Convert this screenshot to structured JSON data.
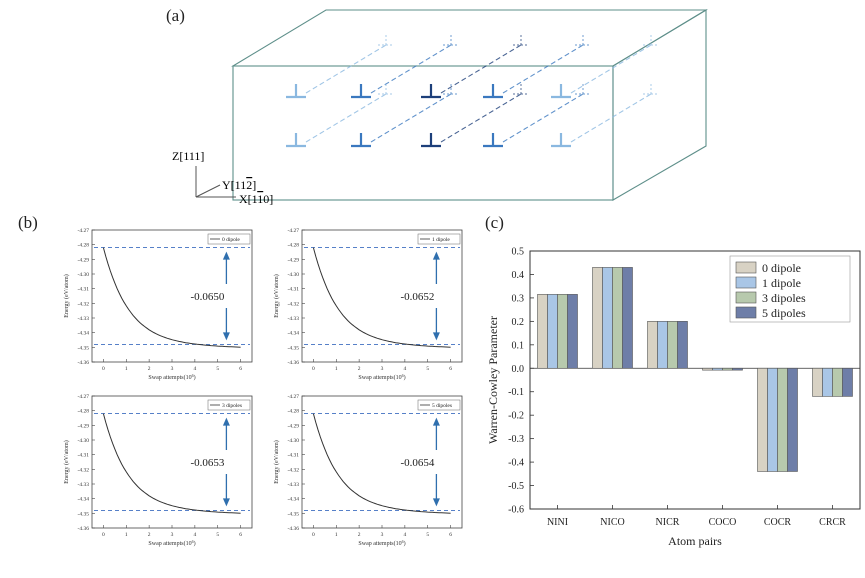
{
  "panel_labels": {
    "a": "(a)",
    "b": "(b)",
    "c": "(c)"
  },
  "axes_3d": {
    "z": "Z[111]",
    "y": "Y[11",
    "y_bar": "2",
    "y_close": "]",
    "x": "X[1",
    "x_bar": "1",
    "x_close": "0]"
  },
  "colors": {
    "box": "#5e8f8a",
    "dislocation_light": "#8ab8e0",
    "dislocation_mid": "#3a78bf",
    "dislocation_dark": "#1d3f7a",
    "energy_line": "#333333",
    "dash": "#3f6fc0",
    "arrow": "#2f6fae"
  },
  "energy_axes": {
    "xlabel": "Swap attempts(10",
    "xlabel_exp": "6",
    "xlabel_close": ")",
    "ylabel": "Energy (eV/atom)",
    "xticks": [
      "0",
      "1",
      "2",
      "3",
      "4",
      "5",
      "6"
    ],
    "yticks": [
      "-4.27",
      "-4.28",
      "-4.29",
      "-4.30",
      "-4.31",
      "-4.32",
      "-4.33",
      "-4.34",
      "-4.35",
      "-4.36"
    ]
  },
  "energy_panels": [
    {
      "legend": "0 dipole",
      "delta": "-0.0650",
      "start": -4.282,
      "end": -4.348
    },
    {
      "legend": "1 dipole",
      "delta": "-0.0652",
      "start": -4.282,
      "end": -4.348
    },
    {
      "legend": "3 dipoles",
      "delta": "-0.0653",
      "start": -4.282,
      "end": -4.348
    },
    {
      "legend": "5 dipoles",
      "delta": "-0.0654",
      "start": -4.282,
      "end": -4.348
    }
  ],
  "chart_data": {
    "type": "bar",
    "title": "",
    "xlabel": "Atom pairs",
    "ylabel": "Warren-Cowley Parameter",
    "ylim": [
      -0.6,
      0.5
    ],
    "yticks": [
      "0.5",
      "0.4",
      "0.3",
      "0.2",
      "0.1",
      "0.0",
      "-0.1",
      "-0.2",
      "-0.3",
      "-0.4",
      "-0.5",
      "-0.6"
    ],
    "categories": [
      "NINI",
      "NICO",
      "NICR",
      "COCO",
      "COCR",
      "CRCR"
    ],
    "series": [
      {
        "name": "0 dipole",
        "color": "#d8d2c4",
        "values": [
          0.315,
          0.43,
          0.2,
          -0.008,
          -0.44,
          -0.12
        ]
      },
      {
        "name": "1 dipole",
        "color": "#a9c6e6",
        "values": [
          0.315,
          0.43,
          0.2,
          -0.008,
          -0.44,
          -0.12
        ]
      },
      {
        "name": "3 dipoles",
        "color": "#b7c9ad",
        "values": [
          0.315,
          0.43,
          0.2,
          -0.008,
          -0.44,
          -0.12
        ]
      },
      {
        "name": "5 dipoles",
        "color": "#6e7ea8",
        "values": [
          0.315,
          0.43,
          0.2,
          -0.008,
          -0.44,
          -0.12
        ]
      }
    ],
    "legend_position": "top-right"
  }
}
